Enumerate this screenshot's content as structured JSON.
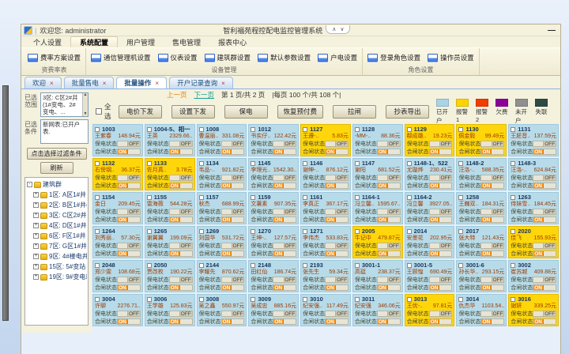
{
  "titlebar": {
    "welcome": "欢迎您: administrator",
    "app_title": "智利福苑程控配电监控管理系统"
  },
  "icons": {
    "collapse": "∧",
    "dropdown": "∨",
    "minimize": "—",
    "up": "▲",
    "down": "▼",
    "close": "×",
    "plus": "+",
    "minus": "-"
  },
  "menu_tabs": [
    {
      "label": "个人设置",
      "active": false
    },
    {
      "label": "系统配置",
      "active": true
    },
    {
      "label": "用户管理",
      "active": false
    },
    {
      "label": "售电管理",
      "active": false
    },
    {
      "label": "报表中心",
      "active": false
    }
  ],
  "ribbon": {
    "groups": [
      {
        "caption": "资费率表",
        "buttons": [
          "费率方案设置"
        ]
      },
      {
        "caption": "设备管理",
        "buttons": [
          "通信管理机设置",
          "仪表设置",
          "建筑群设置",
          "默认参数设置",
          "户电设置"
        ]
      },
      {
        "caption": "角色设置",
        "buttons": [
          "登录角色设置",
          "操作员设置"
        ]
      }
    ]
  },
  "doc_tabs": [
    {
      "label": "欢迎",
      "active": false
    },
    {
      "label": "批量售电",
      "active": false
    },
    {
      "label": "批量操作",
      "active": true
    },
    {
      "label": "开户记录查询",
      "active": false
    }
  ],
  "sidebar": {
    "range_label": "已选范围",
    "range_text": "3区: C区2#井 (1#变电、2#变电、...",
    "cond_label": "已选条件",
    "cond_text": "新网表:已开户表.",
    "filter_button": "点击选择过滤条件",
    "refresh_button": "刷新",
    "tree": {
      "root": "建筑群",
      "items": [
        "1区: A区1#井",
        "2区: B区1#井(B区1#",
        "3区: C区2#井 (1#变",
        "4区: D区1#井 (D区1",
        "6区: F区1#井 (F区1#",
        "7区: G区1#井",
        "9区: 4#楼电井 (4#楼",
        "15区: 5#变站 (3#变",
        "19区: 9#变电站 (2#"
      ]
    }
  },
  "pagination": {
    "prev": "上一页",
    "next": "下一页",
    "page_info": "第 1 页/共 2 页",
    "per_page_info": "|每页 100 个/共 108 个|"
  },
  "toolbar": {
    "select_all": "全选",
    "buttons": [
      "电价下发",
      "设置下发",
      "保电",
      "恢复预付费",
      "拉闸",
      "抄表导出"
    ]
  },
  "legend": [
    {
      "label": "已开户",
      "color": "#A9D3E6"
    },
    {
      "label": "报警1",
      "color": "#FFD400"
    },
    {
      "label": "报警2",
      "color": "#F23C00"
    },
    {
      "label": "欠费",
      "color": "#8B0098"
    },
    {
      "label": "未开户",
      "color": "#8F8F8F"
    },
    {
      "label": "失联",
      "color": "#2E4A46"
    }
  ],
  "card_labels": {
    "baodian": "保电状态",
    "hezha": "合闸状态",
    "on": "ON",
    "off": "OFF"
  },
  "cards": [
    {
      "id": "1003",
      "name": "王紫春",
      "amount": "148.94元",
      "status": "open"
    },
    {
      "id": "1004-5、相一",
      "name": "王英",
      "amount": "2329.66..",
      "status": "open"
    },
    {
      "id": "1008",
      "name": "曹温丽..",
      "amount": "331.08元",
      "status": "open"
    },
    {
      "id": "1012",
      "name": "书实仔..",
      "amount": "122.42元",
      "status": "open"
    },
    {
      "id": "1127",
      "name": "王遵-..",
      "amount": "5.83元",
      "status": "alarm1"
    },
    {
      "id": "1128",
      "name": "-MM-..",
      "amount": "88.36元",
      "status": "open"
    },
    {
      "id": "1129",
      "name": "郗成雄..",
      "amount": "19.23元",
      "status": "alarm1"
    },
    {
      "id": "1130",
      "name": "佩金毅",
      "amount": "99.49元",
      "status": "alarm1"
    },
    {
      "id": "1131",
      "name": "王胚音..",
      "amount": "137.59元",
      "status": "open"
    },
    {
      "id": "1132",
      "name": "右傍钢..",
      "amount": "36.37元",
      "status": "alarm1"
    },
    {
      "id": "1133",
      "name": "佐月真..",
      "amount": "3.78元",
      "status": "alarm1"
    },
    {
      "id": "1134",
      "name": "韦品-..",
      "amount": "921.82元",
      "status": "open"
    },
    {
      "id": "1145",
      "name": "李理光..",
      "amount": "1542.30..",
      "status": "open"
    },
    {
      "id": "1146",
      "name": "谢绅-..",
      "amount": "876.12元",
      "status": "open"
    },
    {
      "id": "1147",
      "name": "谢阳",
      "amount": "681.52元",
      "status": "open"
    },
    {
      "id": "1148-1、522",
      "name": "尤璇烨",
      "amount": "230.41元",
      "status": "open"
    },
    {
      "id": "1148-2",
      "name": "汪洛-..",
      "amount": "588.35元",
      "status": "open"
    },
    {
      "id": "1148-3",
      "name": "汪洛-..",
      "amount": "624.84元",
      "status": "open"
    },
    {
      "id": "1154",
      "name": "金日",
      "amount": "209.45元",
      "status": "open"
    },
    {
      "id": "1155",
      "name": "雷海薇",
      "amount": "544.28元",
      "status": "open"
    },
    {
      "id": "1157",
      "name": "秋杰",
      "amount": "688.99元",
      "status": "open"
    },
    {
      "id": "1159",
      "name": "文薯素",
      "amount": "907.35元",
      "status": "open"
    },
    {
      "id": "1161",
      "name": "李真正",
      "amount": "367.17元",
      "status": "open"
    },
    {
      "id": "1164-1",
      "name": "冯立馨..",
      "amount": "1595.67..",
      "status": "open"
    },
    {
      "id": "1164-2",
      "name": "冯立馨",
      "amount": "3927.05..",
      "status": "open"
    },
    {
      "id": "1258",
      "name": "王巍双..",
      "amount": "184.31元",
      "status": "open"
    },
    {
      "id": "1263",
      "name": "侍妹雪..",
      "amount": "184.45元",
      "status": "open"
    },
    {
      "id": "1264",
      "name": "刘秀丽..",
      "amount": "57.30元",
      "status": "open"
    },
    {
      "id": "1265",
      "name": "谢翼翼",
      "amount": "199.09元",
      "status": "open"
    },
    {
      "id": "1269",
      "name": "刘国华",
      "amount": "531.72元",
      "status": "open"
    },
    {
      "id": "1270",
      "name": "王坤-..",
      "amount": "127.57元",
      "status": "open"
    },
    {
      "id": "1271",
      "name": "李伟杰",
      "amount": "533.83元",
      "status": "open"
    },
    {
      "id": "2005",
      "name": "牛记中",
      "amount": "479.87元",
      "status": "alarm1"
    },
    {
      "id": "2014",
      "name": "安墨花",
      "amount": "202.95元",
      "status": "open"
    },
    {
      "id": "2017",
      "name": "张大特",
      "amount": "121.43元",
      "status": "open"
    },
    {
      "id": "2020",
      "name": "佳飞",
      "amount": "155.93元",
      "status": "alarm1"
    },
    {
      "id": "2048",
      "name": "郑少雯",
      "amount": "108.68元",
      "status": "open"
    },
    {
      "id": "2050",
      "name": "贾改枚",
      "amount": "190.22元",
      "status": "open"
    },
    {
      "id": "2144",
      "name": "李耀先",
      "amount": "870.62元",
      "status": "open"
    },
    {
      "id": "2148",
      "name": "田红仙",
      "amount": "186.74元",
      "status": "open"
    },
    {
      "id": "2193",
      "name": "张先生",
      "amount": "59.34元",
      "status": "open"
    },
    {
      "id": "3001-1",
      "name": "高珽",
      "amount": "238.37元",
      "status": "open"
    },
    {
      "id": "3001-5",
      "name": "王顾惶",
      "amount": "690.49元",
      "status": "open"
    },
    {
      "id": "3001-6",
      "name": "孙长华..",
      "amount": "293.15元",
      "status": "open"
    },
    {
      "id": "3002",
      "name": "崔苏越",
      "amount": "409.88元",
      "status": "open"
    },
    {
      "id": "3004",
      "name": "许聊",
      "amount": "2276.71..",
      "status": "open"
    },
    {
      "id": "3006",
      "name": "王学雄",
      "amount": "125.83元",
      "status": "open"
    },
    {
      "id": "3008",
      "name": "吴之鑫",
      "amount": "550.97元",
      "status": "open"
    },
    {
      "id": "3009",
      "name": "吴成忠",
      "amount": "885.16元",
      "status": "open"
    },
    {
      "id": "3010",
      "name": "纪安强..",
      "amount": "117.49元",
      "status": "open"
    },
    {
      "id": "3011",
      "name": "纪安强",
      "amount": "346.06元",
      "status": "open"
    },
    {
      "id": "3013",
      "name": "王优-..",
      "amount": "97.81元",
      "status": "alarm1"
    },
    {
      "id": "3014",
      "name": "仇杰华",
      "amount": "1103.54..",
      "status": "open"
    },
    {
      "id": "3016",
      "name": "谢妍",
      "amount": "339.25元",
      "status": "alarm1"
    }
  ]
}
